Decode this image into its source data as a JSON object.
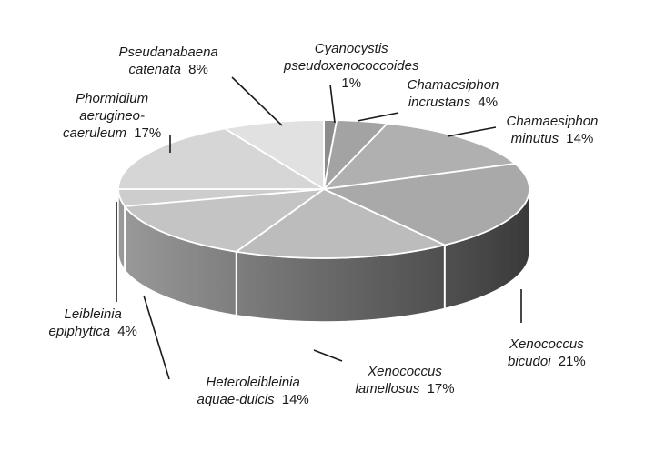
{
  "chart_data": {
    "type": "pie",
    "style": "3d",
    "title": "",
    "legend": "none",
    "slices": [
      {
        "name_lines": [
          "Cyanocystis",
          "pseudoxenococcoides"
        ],
        "pct_text": "1%",
        "value": 1,
        "color": "#8c8c8c"
      },
      {
        "name_lines": [
          "Chamaesiphon",
          "incrustans"
        ],
        "pct_text": "4%",
        "value": 4,
        "color": "#a3a3a3"
      },
      {
        "name_lines": [
          "Chamaesiphon",
          "minutus"
        ],
        "pct_text": "14%",
        "value": 14,
        "color": "#b0b0b0"
      },
      {
        "name_lines": [
          "Xenococcus",
          "bicudoi"
        ],
        "pct_text": "21%",
        "value": 21,
        "color": "#a9a9a9"
      },
      {
        "name_lines": [
          "Xenococcus",
          "lamellosus"
        ],
        "pct_text": "17%",
        "value": 17,
        "color": "#bcbcbc"
      },
      {
        "name_lines": [
          "Heteroleibleinia",
          "aquae-dulcis"
        ],
        "pct_text": "14%",
        "value": 14,
        "color": "#c4c4c4"
      },
      {
        "name_lines": [
          "Leibleinia",
          "epiphytica"
        ],
        "pct_text": "4%",
        "value": 4,
        "color": "#cdcdcd"
      },
      {
        "name_lines": [
          "Phormidium",
          "aerugineo-",
          "caeruleum"
        ],
        "pct_text": "17%",
        "value": 17,
        "color": "#d6d6d6"
      },
      {
        "name_lines": [
          "Pseudanabaena",
          "catenata"
        ],
        "pct_text": "8%",
        "value": 8,
        "color": "#e1e1e1"
      }
    ]
  }
}
